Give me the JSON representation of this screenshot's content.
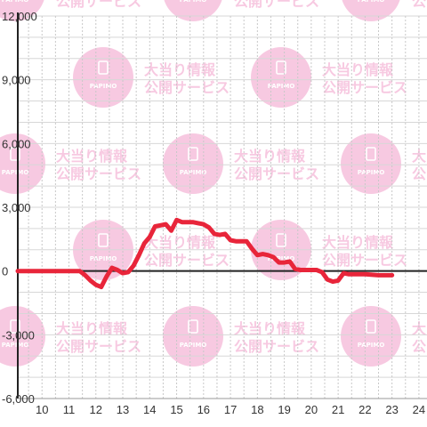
{
  "watermark": {
    "line1": "大当り情報",
    "line2": "公開サービス",
    "badge": "PAPIMO",
    "color": "#f7c4de"
  },
  "chart_data": {
    "type": "line",
    "title": "",
    "xlabel": "",
    "ylabel": "",
    "xlim": [
      9.1,
      24.3
    ],
    "ylim": [
      -6000,
      12000
    ],
    "xticks": [
      10,
      11,
      12,
      13,
      14,
      15,
      16,
      17,
      18,
      19,
      20,
      21,
      22,
      23,
      24
    ],
    "yticks": [
      -6000,
      -3000,
      0,
      3000,
      6000,
      9000,
      12000
    ],
    "xtick_labels": [
      "10",
      "11",
      "12",
      "13",
      "14",
      "15",
      "16",
      "17",
      "18",
      "19",
      "20",
      "21",
      "22",
      "23",
      "24"
    ],
    "ytick_labels": [
      "-6,000",
      "-3,000",
      "0",
      "3,000",
      "6,000",
      "9,000",
      "12,000"
    ],
    "grid": true,
    "line_color": "#e8253a",
    "series": [
      {
        "x": [
          9.1,
          10.0,
          11.0,
          11.4,
          11.6,
          11.8,
          12.0,
          12.2,
          12.4,
          12.6,
          12.8,
          13.0,
          13.2,
          13.4,
          13.6,
          13.8,
          14.0,
          14.2,
          14.4,
          14.6,
          14.8,
          15.0,
          15.2,
          15.4,
          15.6,
          15.8,
          16.0,
          16.2,
          16.4,
          16.6,
          16.8,
          17.0,
          17.2,
          17.4,
          17.6,
          17.8,
          18.0,
          18.2,
          18.4,
          18.6,
          18.8,
          19.0,
          19.2,
          19.4,
          19.6,
          19.8,
          20.0,
          20.2,
          20.4,
          20.6,
          20.8,
          21.0,
          21.2,
          21.4,
          21.6,
          21.8,
          22.0,
          22.5,
          23.0
        ],
        "values": [
          0,
          0,
          0,
          0,
          -200,
          -450,
          -650,
          -750,
          -250,
          150,
          50,
          -100,
          -50,
          250,
          750,
          1300,
          1600,
          2100,
          2150,
          2200,
          1900,
          2400,
          2300,
          2300,
          2300,
          2250,
          2200,
          2050,
          1750,
          1700,
          1750,
          1450,
          1400,
          1400,
          1400,
          1050,
          750,
          800,
          750,
          650,
          400,
          400,
          450,
          100,
          50,
          50,
          50,
          50,
          -50,
          -400,
          -500,
          -450,
          -100,
          -150,
          -150,
          -150,
          -150,
          -200,
          -200
        ]
      }
    ]
  }
}
